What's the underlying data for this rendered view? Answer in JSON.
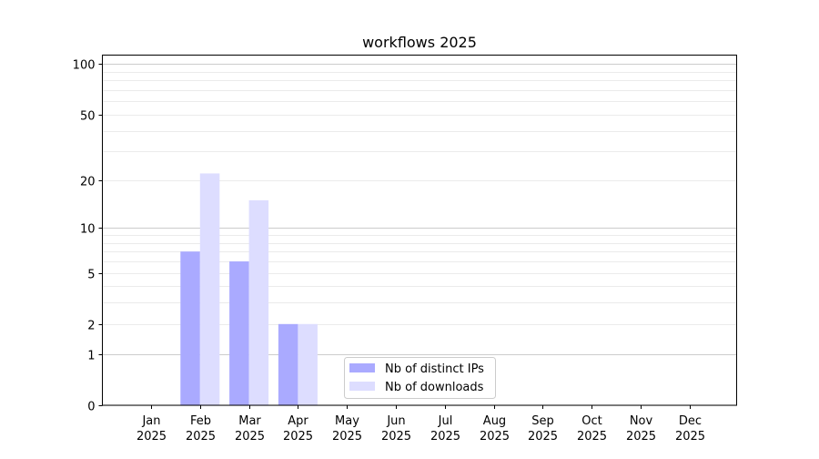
{
  "chart_data": {
    "type": "bar",
    "title": "workflows 2025",
    "xlabel": "",
    "ylabel": "",
    "yscale": "log(1+x)",
    "ylim": [
      0,
      113
    ],
    "grid": true,
    "legend_position": "lower center",
    "yticks": [
      0,
      1,
      2,
      5,
      10,
      20,
      50,
      100
    ],
    "y_minor_gridlines": [
      3,
      4,
      6,
      7,
      8,
      9,
      30,
      40,
      60,
      70,
      80,
      90
    ],
    "categories": [
      [
        "Jan",
        "2025"
      ],
      [
        "Feb",
        "2025"
      ],
      [
        "Mar",
        "2025"
      ],
      [
        "Apr",
        "2025"
      ],
      [
        "May",
        "2025"
      ],
      [
        "Jun",
        "2025"
      ],
      [
        "Jul",
        "2025"
      ],
      [
        "Aug",
        "2025"
      ],
      [
        "Sep",
        "2025"
      ],
      [
        "Oct",
        "2025"
      ],
      [
        "Nov",
        "2025"
      ],
      [
        "Dec",
        "2025"
      ]
    ],
    "series": [
      {
        "name": "Nb of distinct IPs",
        "color": "#aaaaff",
        "values": [
          0,
          7,
          6,
          2,
          0,
          0,
          0,
          0,
          0,
          0,
          0,
          0
        ]
      },
      {
        "name": "Nb of downloads",
        "color": "#ddddff",
        "values": [
          0,
          22,
          15,
          2,
          0,
          0,
          0,
          0,
          0,
          0,
          0,
          0
        ]
      }
    ]
  }
}
